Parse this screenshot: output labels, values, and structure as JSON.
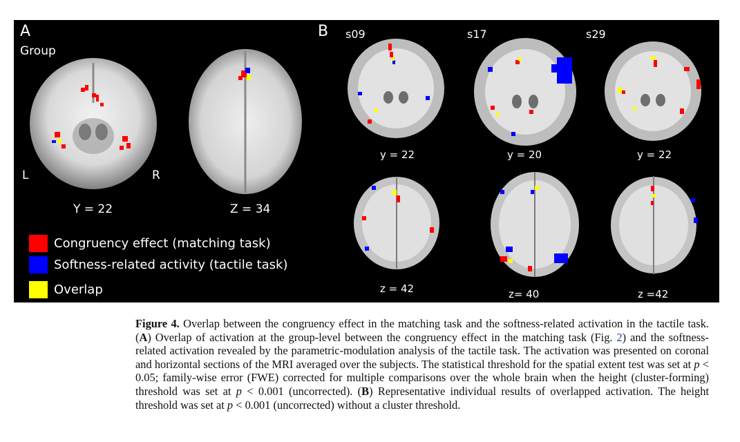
{
  "figure": {
    "panel_a": {
      "letter": "A",
      "group_label": "Group",
      "left_label": "L",
      "right_label": "R",
      "coronal_label": "Y = 22",
      "axial_label": "Z = 34"
    },
    "panel_b": {
      "letter": "B",
      "subjects": [
        "s09",
        "s17",
        "s29"
      ],
      "coronal_labels": [
        "y = 22",
        "y = 20",
        "y = 22"
      ],
      "axial_labels": [
        "z = 42",
        "z= 40",
        "z =42"
      ]
    },
    "legend": [
      {
        "color": "#ff0000",
        "label": "Congruency effect (matching task)"
      },
      {
        "color": "#0000ff",
        "label": "Softness-related activity (tactile task)"
      },
      {
        "color": "#ffff00",
        "label": "Overlap"
      }
    ]
  },
  "caption": {
    "figure_label": "Figure 4.",
    "text_1": "Overlap between the congruency effect in the matching task and the softness-related activation in the tactile task. (",
    "letter_a": "A",
    "text_2": ") Overlap of activation at the group-level between the congruency effect in the matching task (Fig. ",
    "fig_ref": "2",
    "text_3": ") and the softness-related activation revealed by the parametric-modulation analysis of the tactile task. The activation was presented on coronal and horizontal sections of the MRI averaged over the subjects. The statistical threshold for the spatial extent test was set at ",
    "p1": "p",
    "text_4": " < 0.05; family-wise error (FWE) corrected for multiple comparisons over the whole brain when the height (cluster-forming) threshold was set at ",
    "p2": "p",
    "text_5": " < 0.001 (uncorrected). (",
    "letter_b": "B",
    "text_6": ") Representative individual results of overlapped activation. The height threshold was set at ",
    "p3": "p",
    "text_7": " < 0.001 (uncorrected) without a cluster threshold."
  }
}
